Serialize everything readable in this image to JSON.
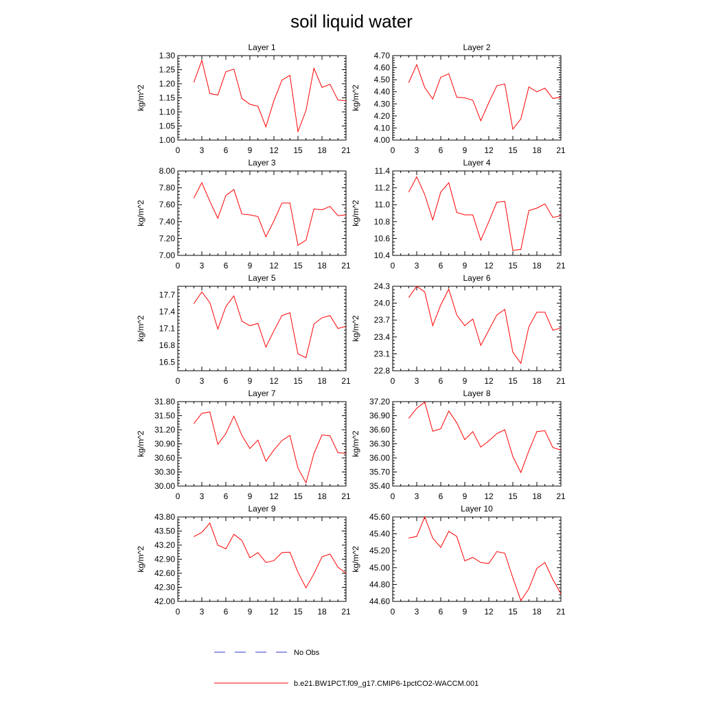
{
  "figure_title": "soil liquid water",
  "legend": [
    {
      "label": "No Obs",
      "color": "#3333cc",
      "style": "dashed"
    },
    {
      "label": "b.e21.BW1PCT.f09_g17.CMIP6-1pctCO2-WACCM.001",
      "color": "#ff0000",
      "style": "solid"
    }
  ],
  "chart_data": [
    {
      "type": "line",
      "title": "Layer 1",
      "ylabel": "kg/m^2",
      "xlim": [
        0,
        21
      ],
      "xticks": [
        0,
        3,
        6,
        9,
        12,
        15,
        18,
        21
      ],
      "ylim": [
        1.0,
        1.3
      ],
      "yticks": [
        "1.00",
        "1.05",
        "1.10",
        "1.15",
        "1.20",
        "1.25",
        "1.30"
      ],
      "x": [
        2,
        3,
        4,
        5,
        6,
        7,
        8,
        9,
        10,
        11,
        12,
        13,
        14,
        15,
        16,
        17,
        18,
        19,
        20,
        21
      ],
      "series": [
        {
          "name": "b.e21.BW1PCT.f09_g17.CMIP6-1pctCO2-WACCM.001",
          "color": "#ff0000",
          "values": [
            1.205,
            1.283,
            1.165,
            1.16,
            1.243,
            1.252,
            1.148,
            1.127,
            1.12,
            1.047,
            1.14,
            1.213,
            1.23,
            1.03,
            1.105,
            1.255,
            1.187,
            1.198,
            1.142,
            1.14
          ]
        }
      ]
    },
    {
      "type": "line",
      "title": "Layer 2",
      "ylabel": "kg/m^2",
      "xlim": [
        0,
        21
      ],
      "xticks": [
        0,
        3,
        6,
        9,
        12,
        15,
        18,
        21
      ],
      "ylim": [
        4.0,
        4.7
      ],
      "yticks": [
        "4.00",
        "4.10",
        "4.20",
        "4.30",
        "4.40",
        "4.50",
        "4.60",
        "4.70"
      ],
      "x": [
        2,
        3,
        4,
        5,
        6,
        7,
        8,
        9,
        10,
        11,
        12,
        13,
        14,
        15,
        16,
        17,
        18,
        19,
        20,
        21
      ],
      "series": [
        {
          "name": "b.e21.BW1PCT.f09_g17.CMIP6-1pctCO2-WACCM.001",
          "color": "#ff0000",
          "values": [
            4.475,
            4.625,
            4.435,
            4.34,
            4.52,
            4.55,
            4.355,
            4.35,
            4.33,
            4.16,
            4.31,
            4.45,
            4.465,
            4.09,
            4.175,
            4.44,
            4.4,
            4.43,
            4.345,
            4.355
          ]
        }
      ]
    },
    {
      "type": "line",
      "title": "Layer 3",
      "ylabel": "kg/m^2",
      "xlim": [
        0,
        21
      ],
      "xticks": [
        0,
        3,
        6,
        9,
        12,
        15,
        18,
        21
      ],
      "ylim": [
        7.0,
        8.0
      ],
      "yticks": [
        "7.00",
        "7.20",
        "7.40",
        "7.60",
        "7.80",
        "8.00"
      ],
      "x": [
        2,
        3,
        4,
        5,
        6,
        7,
        8,
        9,
        10,
        11,
        12,
        13,
        14,
        15,
        16,
        17,
        18,
        19,
        20,
        21
      ],
      "series": [
        {
          "name": "b.e21.BW1PCT.f09_g17.CMIP6-1pctCO2-WACCM.001",
          "color": "#ff0000",
          "values": [
            7.68,
            7.86,
            7.64,
            7.44,
            7.71,
            7.78,
            7.49,
            7.48,
            7.46,
            7.22,
            7.41,
            7.62,
            7.62,
            7.12,
            7.18,
            7.55,
            7.54,
            7.58,
            7.47,
            7.48
          ]
        }
      ]
    },
    {
      "type": "line",
      "title": "Layer 4",
      "ylabel": "kg/m^2",
      "xlim": [
        0,
        21
      ],
      "xticks": [
        0,
        3,
        6,
        9,
        12,
        15,
        18,
        21
      ],
      "ylim": [
        10.4,
        11.4
      ],
      "yticks": [
        "10.4",
        "10.6",
        "10.8",
        "11.0",
        "11.2",
        "11.4"
      ],
      "x": [
        2,
        3,
        4,
        5,
        6,
        7,
        8,
        9,
        10,
        11,
        12,
        13,
        14,
        15,
        16,
        17,
        18,
        19,
        20,
        21
      ],
      "series": [
        {
          "name": "b.e21.BW1PCT.f09_g17.CMIP6-1pctCO2-WACCM.001",
          "color": "#ff0000",
          "values": [
            11.15,
            11.33,
            11.12,
            10.82,
            11.15,
            11.26,
            10.91,
            10.88,
            10.88,
            10.58,
            10.8,
            11.03,
            11.04,
            10.46,
            10.47,
            10.93,
            10.96,
            11.01,
            10.85,
            10.87
          ]
        }
      ]
    },
    {
      "type": "line",
      "title": "Layer 5",
      "ylabel": "kg/m^2",
      "xlim": [
        0,
        21
      ],
      "xticks": [
        0,
        3,
        6,
        9,
        12,
        15,
        18,
        21
      ],
      "ylim": [
        16.35,
        17.85
      ],
      "yticks": [
        "16.5",
        "16.8",
        "17.1",
        "17.4",
        "17.7"
      ],
      "x": [
        2,
        3,
        4,
        5,
        6,
        7,
        8,
        9,
        10,
        11,
        12,
        13,
        14,
        15,
        16,
        17,
        18,
        19,
        20,
        21
      ],
      "series": [
        {
          "name": "b.e21.BW1PCT.f09_g17.CMIP6-1pctCO2-WACCM.001",
          "color": "#ff0000",
          "values": [
            17.54,
            17.75,
            17.56,
            17.09,
            17.49,
            17.68,
            17.23,
            17.15,
            17.19,
            16.77,
            17.06,
            17.33,
            17.38,
            16.65,
            16.58,
            17.18,
            17.29,
            17.33,
            17.1,
            17.14
          ]
        }
      ]
    },
    {
      "type": "line",
      "title": "Layer 6",
      "ylabel": "kg/m^2",
      "xlim": [
        0,
        21
      ],
      "xticks": [
        0,
        3,
        6,
        9,
        12,
        15,
        18,
        21
      ],
      "ylim": [
        22.8,
        24.3
      ],
      "yticks": [
        "22.8",
        "23.1",
        "23.4",
        "23.7",
        "24.0",
        "24.3"
      ],
      "x": [
        2,
        3,
        4,
        5,
        6,
        7,
        8,
        9,
        10,
        11,
        12,
        13,
        14,
        15,
        16,
        17,
        18,
        19,
        20,
        21
      ],
      "series": [
        {
          "name": "b.e21.BW1PCT.f09_g17.CMIP6-1pctCO2-WACCM.001",
          "color": "#ff0000",
          "values": [
            24.1,
            24.3,
            24.2,
            23.6,
            23.97,
            24.25,
            23.79,
            23.6,
            23.72,
            23.25,
            23.52,
            23.79,
            23.89,
            23.13,
            22.93,
            23.58,
            23.84,
            23.84,
            23.52,
            23.56
          ]
        }
      ]
    },
    {
      "type": "line",
      "title": "Layer 7",
      "ylabel": "kg/m^2",
      "xlim": [
        0,
        21
      ],
      "xticks": [
        0,
        3,
        6,
        9,
        12,
        15,
        18,
        21
      ],
      "ylim": [
        30.0,
        31.8
      ],
      "yticks": [
        "30.00",
        "30.30",
        "30.60",
        "30.90",
        "31.20",
        "31.50",
        "31.80"
      ],
      "x": [
        2,
        3,
        4,
        5,
        6,
        7,
        8,
        9,
        10,
        11,
        12,
        13,
        14,
        15,
        16,
        17,
        18,
        19,
        20,
        21
      ],
      "series": [
        {
          "name": "b.e21.BW1PCT.f09_g17.CMIP6-1pctCO2-WACCM.001",
          "color": "#ff0000",
          "values": [
            31.33,
            31.55,
            31.58,
            30.89,
            31.12,
            31.49,
            31.08,
            30.8,
            30.98,
            30.53,
            30.77,
            30.97,
            31.08,
            30.38,
            30.07,
            30.69,
            31.09,
            31.07,
            30.71,
            30.7
          ]
        }
      ]
    },
    {
      "type": "line",
      "title": "Layer 8",
      "ylabel": "kg/m^2",
      "xlim": [
        0,
        21
      ],
      "xticks": [
        0,
        3,
        6,
        9,
        12,
        15,
        18,
        21
      ],
      "ylim": [
        35.4,
        37.2
      ],
      "yticks": [
        "35.40",
        "35.70",
        "36.00",
        "36.30",
        "36.60",
        "36.90",
        "37.20"
      ],
      "x": [
        2,
        3,
        4,
        5,
        6,
        7,
        8,
        9,
        10,
        11,
        12,
        13,
        14,
        15,
        16,
        17,
        18,
        19,
        20,
        21
      ],
      "series": [
        {
          "name": "b.e21.BW1PCT.f09_g17.CMIP6-1pctCO2-WACCM.001",
          "color": "#ff0000",
          "values": [
            36.84,
            37.06,
            37.19,
            36.57,
            36.62,
            37.0,
            36.75,
            36.39,
            36.56,
            36.23,
            36.36,
            36.52,
            36.6,
            36.03,
            35.69,
            36.15,
            36.56,
            36.58,
            36.22,
            36.17
          ]
        }
      ]
    },
    {
      "type": "line",
      "title": "Layer 9",
      "ylabel": "kg/m^2",
      "xlim": [
        0,
        21
      ],
      "xticks": [
        0,
        3,
        6,
        9,
        12,
        15,
        18,
        21
      ],
      "ylim": [
        42.0,
        43.8
      ],
      "yticks": [
        "42.00",
        "42.30",
        "42.60",
        "42.90",
        "43.20",
        "43.50",
        "43.80"
      ],
      "x": [
        2,
        3,
        4,
        5,
        6,
        7,
        8,
        9,
        10,
        11,
        12,
        13,
        14,
        15,
        16,
        17,
        18,
        19,
        20,
        21
      ],
      "series": [
        {
          "name": "b.e21.BW1PCT.f09_g17.CMIP6-1pctCO2-WACCM.001",
          "color": "#ff0000",
          "values": [
            43.38,
            43.47,
            43.67,
            43.2,
            43.12,
            43.43,
            43.3,
            42.93,
            43.04,
            42.83,
            42.87,
            43.04,
            43.05,
            42.62,
            42.29,
            42.59,
            42.95,
            43.01,
            42.73,
            42.6
          ]
        }
      ]
    },
    {
      "type": "line",
      "title": "Layer 10",
      "ylabel": "kg/m^2",
      "xlim": [
        0,
        21
      ],
      "xticks": [
        0,
        3,
        6,
        9,
        12,
        15,
        18,
        21
      ],
      "ylim": [
        44.6,
        45.6
      ],
      "yticks": [
        "44.60",
        "44.80",
        "45.00",
        "45.20",
        "45.40",
        "45.60"
      ],
      "x": [
        2,
        3,
        4,
        5,
        6,
        7,
        8,
        9,
        10,
        11,
        12,
        13,
        14,
        15,
        16,
        17,
        18,
        19,
        20,
        21
      ],
      "series": [
        {
          "name": "b.e21.BW1PCT.f09_g17.CMIP6-1pctCO2-WACCM.001",
          "color": "#ff0000",
          "values": [
            45.35,
            45.37,
            45.6,
            45.35,
            45.24,
            45.43,
            45.37,
            45.08,
            45.12,
            45.06,
            45.05,
            45.19,
            45.17,
            44.88,
            44.61,
            44.75,
            44.99,
            45.06,
            44.86,
            44.69
          ]
        }
      ]
    }
  ]
}
